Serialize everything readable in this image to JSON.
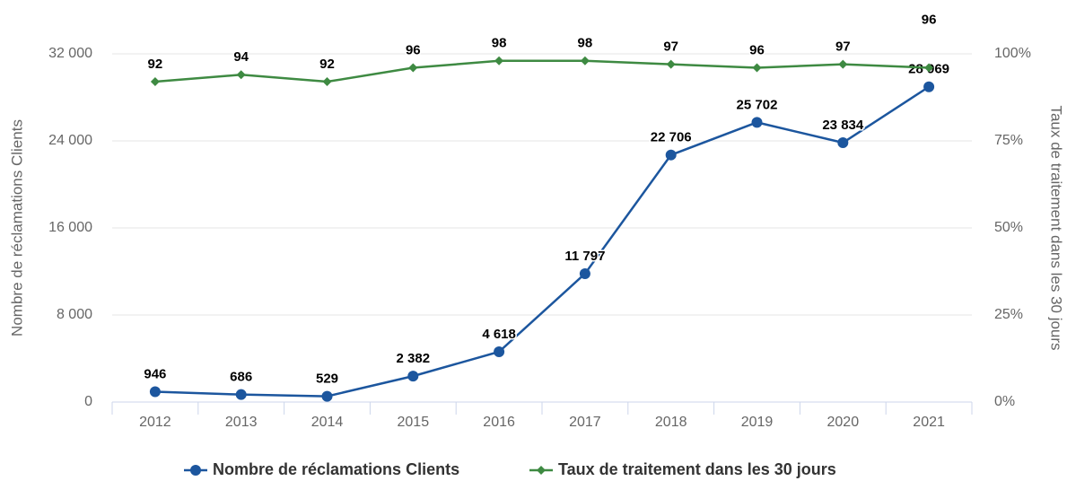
{
  "chart_data": {
    "type": "line",
    "categories": [
      "2012",
      "2013",
      "2014",
      "2015",
      "2016",
      "2017",
      "2018",
      "2019",
      "2020",
      "2021"
    ],
    "series": [
      {
        "name": "Nombre de réclamations Clients",
        "color": "#1c569e",
        "values": [
          946,
          686,
          529,
          2382,
          4618,
          11797,
          22706,
          25702,
          23834,
          28969
        ],
        "value_labels": [
          "946",
          "686",
          "529",
          "2 382",
          "4 618",
          "11 797",
          "22 706",
          "25 702",
          "23 834",
          "28 969"
        ]
      },
      {
        "name": "Taux de traitement dans les 30 jours",
        "color": "#3e8a42",
        "axis": "y2",
        "values": [
          92,
          94,
          92,
          96,
          98,
          98,
          97,
          96,
          97,
          96
        ]
      }
    ],
    "ylabel": "Nombre de réclamations Clients",
    "y2label": "Taux de traitement dans les 30 jours",
    "ylim": [
      0,
      32000
    ],
    "yticks": [
      0,
      {
        "value": 8000,
        "label": "8 000"
      },
      {
        "value": 16000,
        "label": "16 000"
      },
      {
        "value": 24000,
        "label": "24 000"
      },
      {
        "value": 32000,
        "label": "32 000"
      }
    ],
    "y2lim": [
      0,
      100
    ],
    "y2ticks": [
      {
        "value": 0,
        "label": "0%"
      },
      {
        "value": 25,
        "label": "25%"
      },
      {
        "value": 50,
        "label": "50%"
      },
      {
        "value": 75,
        "label": "75%"
      },
      {
        "value": 100,
        "label": "100%"
      }
    ],
    "grid": true,
    "legend": "bottom"
  }
}
